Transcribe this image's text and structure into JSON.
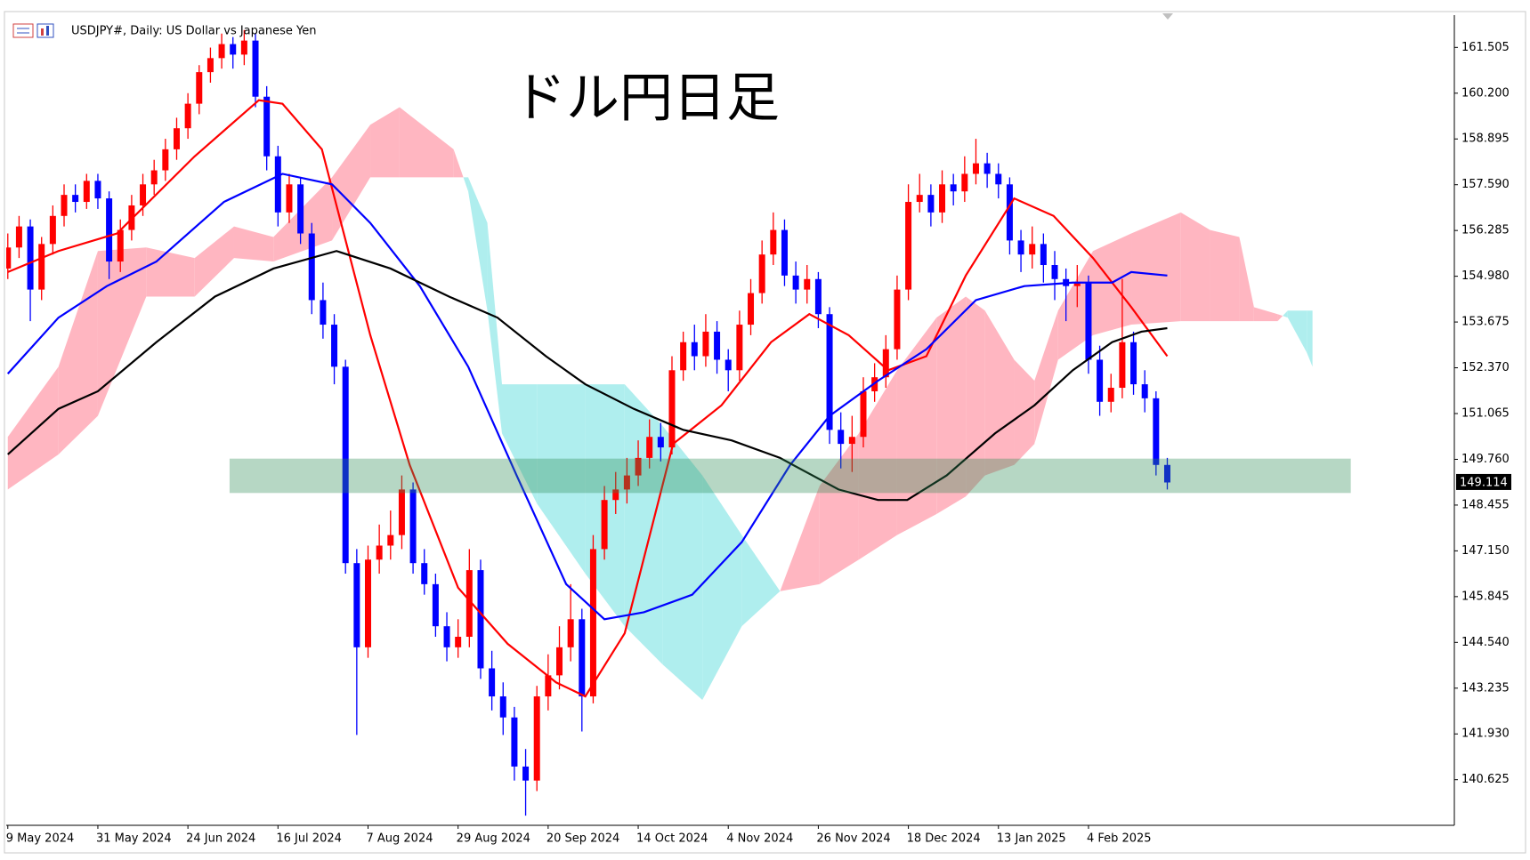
{
  "chart_data": {
    "type": "candlestick",
    "title": "USDJPY#, Daily:  US Dollar vs Japanese Yen",
    "annotation": "ドル円日足",
    "candles": {
      "open": [
        155.2,
        155.8,
        156.4,
        154.6,
        155.9,
        156.7,
        157.3,
        157.1,
        157.7,
        157.2,
        155.4,
        156.3,
        157.0,
        157.6,
        158.0,
        158.6,
        159.2,
        159.9,
        160.8,
        161.2,
        161.6,
        161.3,
        161.7,
        160.1,
        158.4,
        156.8,
        157.6,
        156.2,
        154.3,
        153.6,
        152.4,
        146.8,
        144.4,
        146.9,
        147.3,
        147.6,
        148.9,
        146.8,
        146.2,
        145.0,
        144.4,
        144.7,
        146.6,
        143.8,
        143.0,
        142.4,
        141.0,
        140.6,
        143.0,
        143.6,
        144.4,
        145.2,
        143.0,
        147.2,
        148.6,
        148.9,
        149.3,
        149.8,
        150.4,
        150.1,
        152.3,
        153.1,
        152.7,
        153.4,
        152.6,
        152.3,
        153.6,
        154.5,
        155.6,
        156.3,
        155.0,
        154.6,
        154.9,
        153.9,
        150.6,
        150.2,
        150.4,
        151.7,
        152.1,
        152.9,
        154.6,
        157.1,
        157.3,
        156.8,
        157.6,
        157.4,
        157.9,
        158.2,
        157.9,
        157.6,
        156.0,
        155.6,
        155.9,
        155.3,
        154.9,
        154.7,
        154.8,
        152.6,
        151.4,
        151.8,
        153.1,
        151.9,
        151.5,
        149.6
      ],
      "high": [
        156.2,
        156.7,
        156.6,
        156.1,
        157.0,
        157.6,
        157.6,
        157.9,
        157.9,
        157.4,
        156.6,
        157.3,
        157.9,
        158.3,
        158.9,
        159.5,
        160.2,
        161.0,
        161.5,
        161.9,
        161.8,
        162.0,
        161.9,
        160.4,
        158.7,
        157.9,
        157.8,
        156.5,
        154.8,
        153.9,
        152.6,
        147.2,
        147.3,
        147.9,
        148.3,
        149.3,
        149.1,
        147.2,
        146.5,
        145.4,
        145.2,
        147.2,
        146.9,
        144.3,
        143.4,
        142.7,
        141.5,
        143.3,
        144.2,
        145.0,
        146.2,
        145.5,
        147.6,
        149.0,
        149.4,
        149.8,
        150.3,
        150.9,
        150.8,
        152.7,
        153.4,
        153.6,
        153.9,
        153.7,
        152.9,
        154.0,
        154.9,
        156.0,
        156.8,
        156.6,
        155.4,
        155.3,
        155.1,
        154.1,
        151.1,
        151.0,
        152.1,
        152.5,
        153.3,
        155.0,
        157.6,
        157.9,
        157.6,
        158.0,
        157.9,
        158.4,
        158.9,
        158.5,
        158.2,
        157.8,
        156.3,
        156.4,
        156.2,
        155.7,
        155.2,
        155.3,
        155.0,
        153.0,
        152.2,
        154.9,
        153.4,
        152.3,
        151.7,
        149.8
      ],
      "low": [
        154.9,
        155.5,
        153.7,
        154.3,
        155.6,
        156.4,
        156.8,
        156.9,
        156.9,
        154.9,
        155.1,
        156.0,
        156.7,
        157.3,
        157.7,
        158.3,
        158.9,
        159.6,
        160.5,
        160.9,
        160.9,
        161.0,
        159.8,
        158.0,
        156.4,
        156.5,
        155.9,
        153.9,
        153.2,
        151.9,
        146.5,
        141.9,
        144.1,
        146.5,
        146.9,
        147.2,
        146.5,
        145.9,
        144.7,
        144.0,
        144.1,
        144.4,
        143.5,
        142.6,
        141.9,
        140.6,
        139.6,
        140.3,
        142.6,
        143.2,
        144.0,
        142.0,
        142.8,
        146.9,
        148.2,
        148.5,
        149.0,
        149.5,
        149.7,
        149.9,
        152.0,
        152.3,
        152.4,
        152.2,
        151.7,
        152.0,
        153.3,
        154.2,
        155.3,
        154.7,
        154.2,
        154.2,
        153.5,
        150.2,
        149.5,
        149.4,
        150.1,
        151.4,
        151.8,
        152.6,
        154.3,
        156.8,
        156.4,
        156.5,
        157.0,
        157.1,
        157.6,
        157.5,
        157.2,
        155.6,
        155.1,
        155.2,
        154.8,
        154.3,
        153.7,
        154.1,
        152.2,
        151.0,
        151.1,
        151.5,
        151.6,
        151.1,
        149.3,
        148.9
      ],
      "close": [
        155.8,
        156.4,
        154.6,
        155.9,
        156.7,
        157.3,
        157.1,
        157.7,
        157.2,
        155.4,
        156.3,
        157.0,
        157.6,
        158.0,
        158.6,
        159.2,
        159.9,
        160.8,
        161.2,
        161.6,
        161.3,
        161.7,
        160.1,
        158.4,
        156.8,
        157.6,
        156.2,
        154.3,
        153.6,
        152.4,
        146.8,
        144.4,
        146.9,
        147.3,
        147.6,
        148.9,
        146.8,
        146.2,
        145.0,
        144.4,
        144.7,
        146.6,
        143.8,
        143.0,
        142.4,
        141.0,
        140.6,
        143.0,
        143.6,
        144.4,
        145.2,
        143.0,
        147.2,
        148.6,
        148.9,
        149.3,
        149.8,
        150.4,
        150.1,
        152.3,
        153.1,
        152.7,
        153.4,
        152.6,
        152.3,
        153.6,
        154.5,
        155.6,
        156.3,
        155.0,
        154.6,
        154.9,
        153.9,
        150.6,
        150.2,
        150.4,
        151.7,
        152.1,
        152.9,
        154.6,
        157.1,
        157.3,
        156.8,
        157.6,
        157.4,
        157.9,
        158.2,
        157.9,
        157.6,
        156.0,
        155.6,
        155.9,
        155.3,
        154.9,
        154.7,
        154.8,
        152.6,
        151.4,
        151.8,
        153.1,
        151.9,
        151.5,
        149.6,
        149.1
      ]
    },
    "up_color": "#ff0000",
    "down_color": "#0000ff",
    "lines": [
      {
        "color": "#ff0000",
        "x": [
          0,
          4.5,
          9.7,
          16.6,
          22.3,
          24.4,
          27.9,
          32.2,
          35.7,
          40,
          44.4,
          48.7,
          51.3,
          54.8,
          59.1,
          63.4,
          67.8,
          71.2,
          74.7,
          78.2,
          81.6,
          85.1,
          89.4,
          92.9,
          96.4,
          99.8,
          103
        ],
        "values": [
          155.1,
          155.7,
          156.2,
          158.4,
          160.0,
          159.9,
          158.6,
          153.3,
          149.6,
          146.1,
          144.5,
          143.4,
          143.0,
          144.8,
          150.2,
          151.3,
          153.1,
          153.9,
          153.3,
          152.3,
          152.7,
          155.0,
          157.2,
          156.7,
          155.5,
          154.1,
          152.7
        ]
      },
      {
        "color": "#0000ff",
        "x": [
          0,
          4.5,
          8.8,
          13.2,
          19.2,
          24.4,
          28.8,
          32.2,
          36.6,
          40.9,
          45.2,
          49.6,
          53,
          56.5,
          60.8,
          65.2,
          69.5,
          73,
          77.3,
          81.6,
          86,
          90.3,
          94.6,
          98.1,
          99.8,
          103
        ],
        "values": [
          152.2,
          153.8,
          154.7,
          155.4,
          157.1,
          157.9,
          157.6,
          156.5,
          154.7,
          152.4,
          149.3,
          146.2,
          145.2,
          145.4,
          145.9,
          147.4,
          149.6,
          151.0,
          152.0,
          152.9,
          154.3,
          154.7,
          154.8,
          154.8,
          155.1,
          155.0
        ]
      },
      {
        "color": "#000000",
        "x": [
          0,
          4.5,
          8,
          13.2,
          18.4,
          23.6,
          29.2,
          34,
          39.2,
          43.5,
          47.8,
          51.3,
          55.6,
          60,
          64.3,
          68.6,
          73.8,
          77.3,
          79.9,
          83.4,
          87.7,
          91.2,
          94.6,
          98.1,
          100.7,
          103
        ],
        "values": [
          149.9,
          151.2,
          151.7,
          153.1,
          154.4,
          155.2,
          155.7,
          155.2,
          154.4,
          153.8,
          152.7,
          151.9,
          151.2,
          150.6,
          150.3,
          149.8,
          148.9,
          148.6,
          148.6,
          149.3,
          150.5,
          151.3,
          152.3,
          153.1,
          153.4,
          153.5
        ]
      }
    ],
    "cloud": {
      "x": [
        0,
        4.5,
        8,
        12.3,
        16.6,
        20.1,
        23.6,
        28.8,
        32.2,
        34.8,
        39.6,
        40.9,
        42.6,
        43.9,
        47,
        51.3,
        54.8,
        58.2,
        61.7,
        65.2,
        68.6,
        72.1,
        75.6,
        79,
        82.5,
        85.1,
        86.8,
        89.4,
        91.2,
        93.3,
        96.4,
        99.8,
        104.2,
        106.8,
        109.4,
        110.7,
        112.8,
        113.7,
        115.4,
        115.9
      ],
      "span_a": [
        150.4,
        152.4,
        155.7,
        155.8,
        155.5,
        156.4,
        156.1,
        157.8,
        159.3,
        159.8,
        158.6,
        157.4,
        154.0,
        150.5,
        148.5,
        146.5,
        145.0,
        143.9,
        142.9,
        145.0,
        146.0,
        149.0,
        150.5,
        152.3,
        153.8,
        154.4,
        154.0,
        152.6,
        152.0,
        154.0,
        155.7,
        156.2,
        156.8,
        156.3,
        156.1,
        154.1,
        153.9,
        153.8,
        152.8,
        152.4
      ],
      "span_b": [
        148.9,
        149.9,
        151.0,
        154.4,
        154.4,
        155.5,
        155.4,
        156.0,
        157.8,
        157.8,
        157.8,
        157.8,
        156.5,
        151.9,
        151.9,
        151.9,
        151.9,
        150.7,
        149.3,
        147.6,
        146.0,
        146.2,
        146.9,
        147.6,
        148.2,
        148.7,
        149.3,
        149.6,
        150.2,
        152.6,
        153.3,
        153.6,
        153.7,
        153.7,
        153.7,
        153.7,
        153.7,
        154.0,
        154.0,
        154.0
      ],
      "up_color": "#ffb6c1",
      "down_color": "#afeeee"
    },
    "band": {
      "x": [
        19.7,
        119.3
      ],
      "values": [
        148.8,
        149.78
      ],
      "color": "#2e8b57"
    },
    "last_price": 149.114,
    "xlim": [
      -0.14,
      128.5
    ],
    "xticks": [
      {
        "value": 0,
        "label": "9 May 2024"
      },
      {
        "value": 8,
        "label": "31 May 2024"
      },
      {
        "value": 16,
        "label": "24 Jun 2024"
      },
      {
        "value": 24,
        "label": "16 Jul 2024"
      },
      {
        "value": 32,
        "label": "7 Aug 2024"
      },
      {
        "value": 40,
        "label": "29 Aug 2024"
      },
      {
        "value": 48,
        "label": "20 Sep 2024"
      },
      {
        "value": 56,
        "label": "14 Oct 2024"
      },
      {
        "value": 64,
        "label": "4 Nov 2024"
      },
      {
        "value": 72,
        "label": "26 Nov 2024"
      },
      {
        "value": 80,
        "label": "18 Dec 2024"
      },
      {
        "value": 88,
        "label": "13 Jan 2025"
      },
      {
        "value": 96,
        "label": "4 Feb 2025"
      }
    ],
    "ylim": [
      139.324,
      162.426
    ],
    "yticks": [
      161.505,
      {
        "value": 160.2,
        "label": "160.200"
      },
      158.895,
      {
        "value": 157.59,
        "label": "157.590"
      },
      156.285,
      {
        "value": 154.98,
        "label": "154.980"
      },
      153.675,
      {
        "value": 152.37,
        "label": "152.370"
      },
      151.065,
      {
        "value": 149.76,
        "label": "149.760"
      },
      148.455,
      {
        "value": 147.15,
        "label": "147.150"
      },
      145.845,
      {
        "value": 144.54,
        "label": "144.540"
      },
      143.235,
      {
        "value": 141.93,
        "label": "141.930"
      },
      140.625
    ],
    "grid": false
  }
}
